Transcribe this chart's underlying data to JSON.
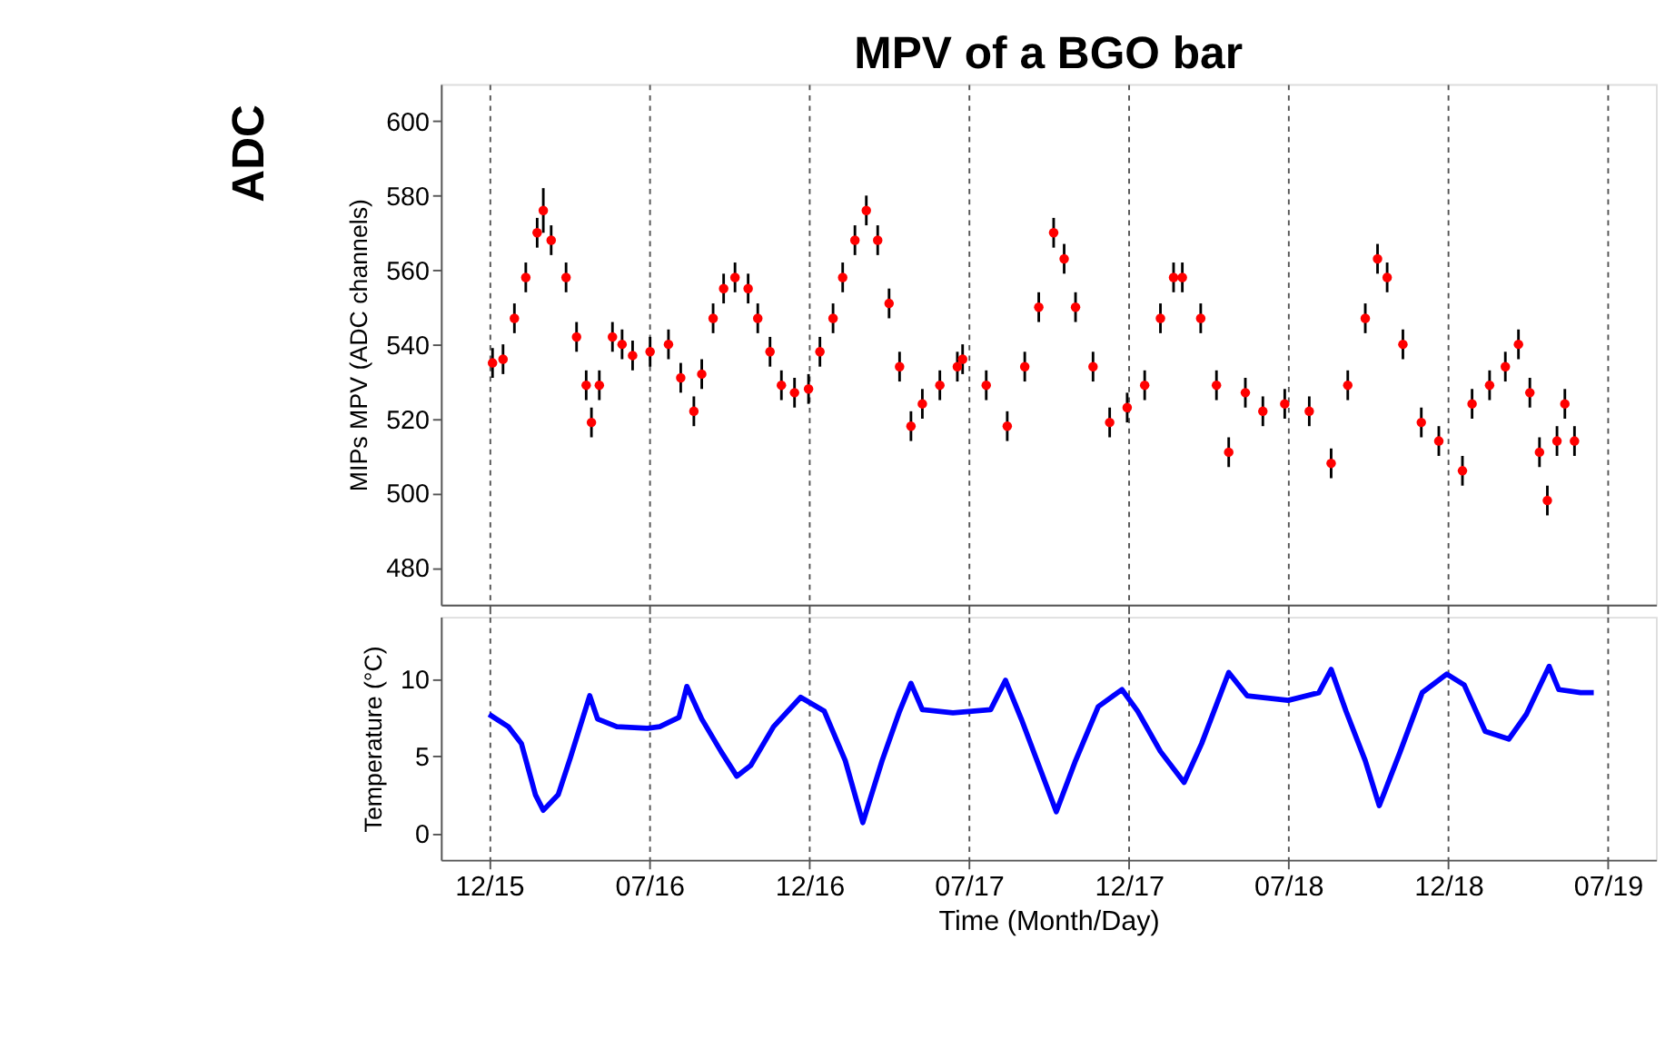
{
  "chart_data": [
    {
      "type": "scatter",
      "title": "MPV of a BGO bar",
      "ylabel": "MIPs MPV (ADC channels)",
      "annotations": [
        "ADC"
      ],
      "xlim": [
        "2015-11-06",
        "2019-08-25"
      ],
      "xticks": [
        {
          "value": "2015-12-31",
          "label": null
        },
        {
          "value": "2016-07-01",
          "label": null
        },
        {
          "value": "2016-12-31",
          "label": null
        },
        {
          "value": "2017-07-01",
          "label": null
        },
        {
          "value": "2017-12-31",
          "label": null
        },
        {
          "value": "2018-07-01",
          "label": null
        },
        {
          "value": "2018-12-31",
          "label": null
        },
        {
          "value": "2019-07-01",
          "label": null
        }
      ],
      "ylim": [
        470,
        610
      ],
      "yticks": [
        480,
        500,
        520,
        540,
        560,
        580,
        600
      ],
      "grid": "x",
      "tick_labels": "y",
      "marker": "circle",
      "series": [
        {
          "color": "#ff0000",
          "x": [
            "2016-01-04",
            "2016-01-16",
            "2016-01-29",
            "2016-02-11",
            "2016-02-24",
            "2016-03-02",
            "2016-03-11",
            "2016-03-28",
            "2016-04-09",
            "2016-04-20",
            "2016-04-26",
            "2016-05-05",
            "2016-05-20",
            "2016-05-31",
            "2016-06-12",
            "2016-07-02",
            "2016-07-23",
            "2016-08-06",
            "2016-08-21",
            "2016-08-30",
            "2016-09-12",
            "2016-09-24",
            "2016-10-07",
            "2016-10-22",
            "2016-11-02",
            "2016-11-16",
            "2016-11-29",
            "2016-12-14",
            "2016-12-30",
            "2017-01-12",
            "2017-01-27",
            "2017-02-07",
            "2017-02-21",
            "2017-03-06",
            "2017-03-19",
            "2017-04-01",
            "2017-04-13",
            "2017-04-26",
            "2017-05-09",
            "2017-05-29",
            "2017-06-18",
            "2017-06-24",
            "2017-07-21",
            "2017-08-14",
            "2017-09-03",
            "2017-09-19",
            "2017-10-06",
            "2017-10-18",
            "2017-10-31",
            "2017-11-20",
            "2017-12-09",
            "2017-12-29",
            "2018-01-18",
            "2018-02-05",
            "2018-02-20",
            "2018-03-02",
            "2018-03-23",
            "2018-04-10",
            "2018-04-24",
            "2018-05-13",
            "2018-06-02",
            "2018-06-27",
            "2018-07-25",
            "2018-08-19",
            "2018-09-07",
            "2018-09-27",
            "2018-10-11",
            "2018-10-22",
            "2018-11-09",
            "2018-11-30",
            "2018-12-20",
            "2019-01-16",
            "2019-01-27",
            "2019-02-16",
            "2019-03-06",
            "2019-03-21",
            "2019-04-03",
            "2019-04-14",
            "2019-04-23",
            "2019-05-04",
            "2019-05-13",
            "2019-05-24"
          ],
          "values": [
            535,
            536,
            547,
            558,
            570,
            576,
            568,
            558,
            542,
            529,
            519,
            529,
            542,
            540,
            537,
            538,
            540,
            531,
            522,
            532,
            547,
            555,
            558,
            555,
            547,
            538,
            529,
            527,
            528,
            538,
            547,
            558,
            568,
            576,
            568,
            551,
            534,
            518,
            524,
            529,
            534,
            536,
            529,
            518,
            534,
            550,
            570,
            563,
            550,
            534,
            519,
            523,
            529,
            547,
            558,
            558,
            547,
            529,
            511,
            527,
            522,
            524,
            522,
            508,
            529,
            547,
            563,
            558,
            540,
            519,
            514,
            506,
            524,
            529,
            534,
            540,
            527,
            511,
            498,
            514,
            524,
            514
          ],
          "errors": [
            4,
            4,
            4,
            4,
            4,
            6,
            4,
            4,
            4,
            4,
            4,
            4,
            4,
            4,
            4,
            4,
            4,
            4,
            4,
            4,
            4,
            4,
            4,
            4,
            4,
            4,
            4,
            4,
            4,
            4,
            4,
            4,
            4,
            4,
            4,
            4,
            4,
            4,
            4,
            4,
            4,
            4,
            4,
            4,
            4,
            4,
            4,
            4,
            4,
            4,
            4,
            4,
            4,
            4,
            4,
            4,
            4,
            4,
            4,
            4,
            4,
            4,
            4,
            4,
            4,
            4,
            4,
            4,
            4,
            4,
            4,
            4,
            4,
            4,
            4,
            4,
            4,
            4,
            4,
            4,
            4,
            4
          ]
        }
      ]
    },
    {
      "type": "line",
      "xlabel": "Time (Month/Day)",
      "ylabel": "Temperature (°C)",
      "xlim": [
        "2015-11-06",
        "2019-08-25"
      ],
      "xticks": [
        {
          "value": "2015-12-31",
          "label": "12/15"
        },
        {
          "value": "2016-07-01",
          "label": "07/16"
        },
        {
          "value": "2016-12-31",
          "label": "12/16"
        },
        {
          "value": "2017-07-01",
          "label": "07/17"
        },
        {
          "value": "2017-12-31",
          "label": "12/17"
        },
        {
          "value": "2018-07-01",
          "label": "07/18"
        },
        {
          "value": "2018-12-31",
          "label": "12/18"
        },
        {
          "value": "2019-07-01",
          "label": "07/19"
        }
      ],
      "ylim": [
        -1.7,
        14
      ],
      "yticks": [
        0,
        5,
        10
      ],
      "grid": "x",
      "series": [
        {
          "color": "#0000ff",
          "x": [
            "2015-12-31",
            "2016-01-22",
            "2016-02-06",
            "2016-02-22",
            "2016-03-02",
            "2016-03-19",
            "2016-04-02",
            "2016-04-24",
            "2016-05-03",
            "2016-05-25",
            "2016-06-29",
            "2016-07-13",
            "2016-08-04",
            "2016-08-13",
            "2016-08-30",
            "2016-09-21",
            "2016-10-09",
            "2016-10-25",
            "2016-11-20",
            "2016-12-21",
            "2017-01-17",
            "2017-02-10",
            "2017-03-02",
            "2017-03-24",
            "2017-04-13",
            "2017-04-26",
            "2017-05-09",
            "2017-06-13",
            "2017-07-26",
            "2017-08-12",
            "2017-08-30",
            "2017-09-21",
            "2017-10-09",
            "2017-10-31",
            "2017-11-26",
            "2017-12-23",
            "2018-01-10",
            "2018-02-05",
            "2018-03-04",
            "2018-03-24",
            "2018-04-24",
            "2018-05-15",
            "2018-07-01",
            "2018-08-05",
            "2018-08-19",
            "2018-09-05",
            "2018-09-27",
            "2018-10-13",
            "2018-11-06",
            "2018-12-01",
            "2018-12-29",
            "2019-01-18",
            "2019-02-11",
            "2019-03-10",
            "2019-03-30",
            "2019-04-25",
            "2019-05-06",
            "2019-05-31",
            "2019-06-15"
          ],
          "values": [
            7.7,
            6.9,
            5.8,
            2.5,
            1.5,
            2.5,
            4.9,
            8.9,
            7.4,
            6.9,
            6.8,
            6.9,
            7.5,
            9.5,
            7.4,
            5.3,
            3.7,
            4.4,
            6.9,
            8.8,
            7.9,
            4.7,
            0.7,
            4.7,
            7.9,
            9.7,
            8.0,
            7.8,
            8.0,
            9.9,
            7.4,
            4.1,
            1.4,
            4.7,
            8.2,
            9.3,
            7.9,
            5.3,
            3.3,
            5.8,
            10.4,
            8.9,
            8.6,
            9.1,
            10.6,
            7.9,
            4.7,
            1.8,
            5.3,
            9.1,
            10.3,
            9.6,
            6.6,
            6.1,
            7.7,
            10.8,
            9.3,
            9.1,
            9.1
          ]
        }
      ]
    }
  ]
}
